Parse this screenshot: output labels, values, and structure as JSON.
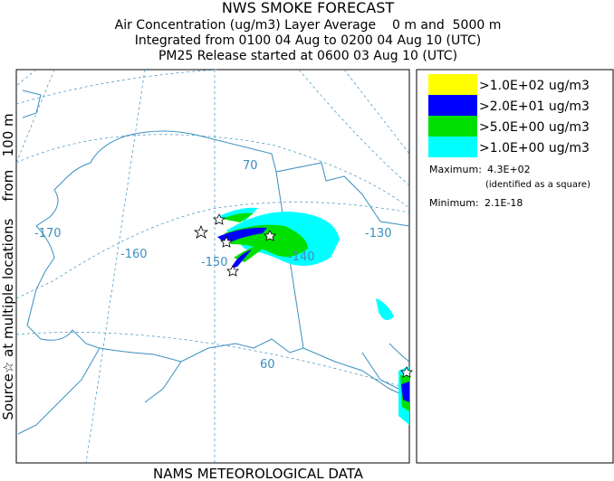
{
  "header": {
    "title": "NWS SMOKE FORECAST",
    "lines": [
      "Air Concentration (ug/m3) Layer Average    0 m and  5000 m",
      "Integrated from 0100 04 Aug to 0200 04 Aug 10 (UTC)",
      "PM25 Release started at 0600 03 Aug 10 (UTC)"
    ]
  },
  "side_label": "Source☆ at multiple locations    from   100 m",
  "footer": "NAMS METEOROLOGICAL DATA",
  "map": {
    "labels": [
      "-170",
      "-160",
      "-150",
      "-140",
      "-130",
      "70",
      "60"
    ]
  },
  "legend": {
    "entries": [
      {
        "label": ">1.0E+02 ug/m3",
        "color": "#ffff00"
      },
      {
        "label": ">2.0E+01 ug/m3",
        "color": "#0000ff"
      },
      {
        "label": ">5.0E+00 ug/m3",
        "color": "#00e000"
      },
      {
        "label": ">1.0E+00 ug/m3",
        "color": "#00ffff"
      }
    ],
    "maximum_label": "Maximum:",
    "maximum": "4.3E+02",
    "maximum_note": "(identified as a square)",
    "minimum_label": "Minimum:",
    "minimum": "2.1E-18"
  }
}
